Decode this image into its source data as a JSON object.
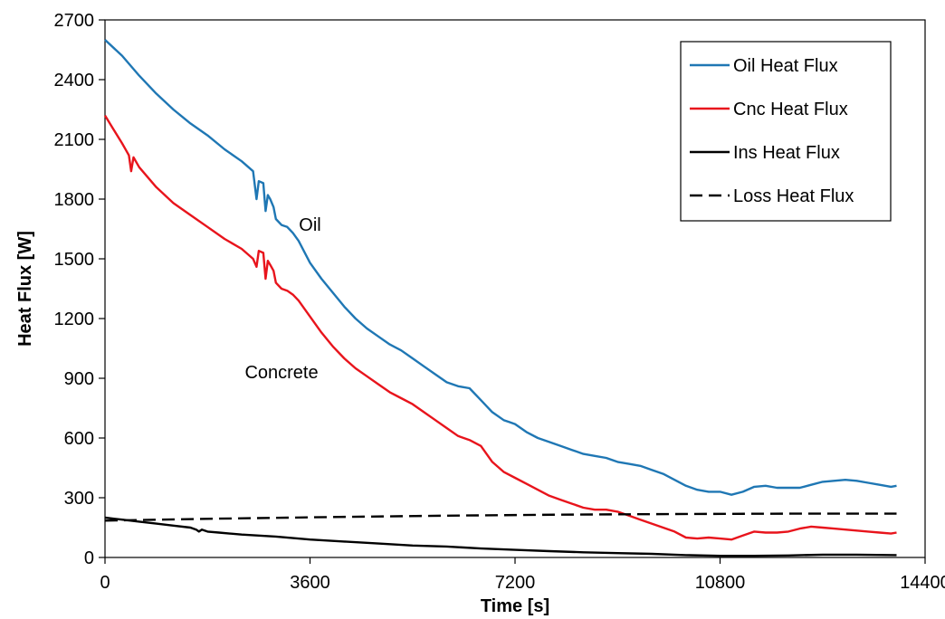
{
  "chart_data": {
    "type": "line",
    "title": "",
    "xlabel": "Time [s]",
    "ylabel": "Heat Flux [W]",
    "xlim": [
      0,
      14400
    ],
    "ylim": [
      0,
      2700
    ],
    "xticks": [
      0,
      3600,
      7200,
      10800,
      14400
    ],
    "yticks": [
      0,
      300,
      600,
      900,
      1200,
      1500,
      1800,
      2100,
      2400,
      2700
    ],
    "grid": false,
    "legend_position": "top-right",
    "annotations": [
      {
        "text": "Oil",
        "x": 3600,
        "y": 1640
      },
      {
        "text": "Concrete",
        "x": 3100,
        "y": 900
      }
    ],
    "series": [
      {
        "name": "Oil Heat Flux",
        "color": "#1f77b4",
        "dash": "solid",
        "x": [
          0,
          300,
          600,
          900,
          1200,
          1500,
          1800,
          2100,
          2400,
          2600,
          2660,
          2700,
          2780,
          2820,
          2860,
          2900,
          2960,
          3000,
          3100,
          3200,
          3300,
          3400,
          3600,
          3800,
          4000,
          4200,
          4400,
          4600,
          4800,
          5000,
          5200,
          5400,
          5600,
          5800,
          6000,
          6200,
          6400,
          6600,
          6800,
          7000,
          7100,
          7200,
          7300,
          7400,
          7600,
          7800,
          8000,
          8200,
          8400,
          8600,
          8800,
          9000,
          9200,
          9400,
          9600,
          9800,
          10000,
          10200,
          10400,
          10600,
          10800,
          11000,
          11200,
          11400,
          11600,
          11800,
          12000,
          12200,
          12400,
          12600,
          12800,
          13000,
          13200,
          13400,
          13600,
          13800,
          13900
        ],
        "values": [
          2600,
          2520,
          2420,
          2330,
          2250,
          2180,
          2120,
          2050,
          1990,
          1940,
          1800,
          1890,
          1880,
          1740,
          1820,
          1800,
          1760,
          1700,
          1670,
          1660,
          1630,
          1590,
          1480,
          1400,
          1330,
          1260,
          1200,
          1150,
          1110,
          1070,
          1040,
          1000,
          960,
          920,
          880,
          860,
          850,
          790,
          730,
          690,
          680,
          670,
          650,
          630,
          600,
          580,
          560,
          540,
          520,
          510,
          500,
          480,
          470,
          460,
          440,
          420,
          390,
          360,
          340,
          330,
          330,
          315,
          330,
          355,
          360,
          350,
          350,
          350,
          365,
          380,
          385,
          390,
          385,
          375,
          365,
          355,
          360
        ]
      },
      {
        "name": "Cnc Heat Flux",
        "color": "#e8141c",
        "dash": "solid",
        "x": [
          0,
          150,
          300,
          380,
          420,
          460,
          500,
          600,
          900,
          1200,
          1500,
          1800,
          2100,
          2400,
          2600,
          2660,
          2700,
          2780,
          2820,
          2860,
          2900,
          2960,
          3000,
          3100,
          3200,
          3300,
          3400,
          3600,
          3800,
          4000,
          4200,
          4400,
          4600,
          4800,
          5000,
          5200,
          5400,
          5600,
          5800,
          6000,
          6200,
          6400,
          6600,
          6800,
          7000,
          7200,
          7400,
          7600,
          7800,
          8000,
          8200,
          8400,
          8600,
          8800,
          9000,
          9200,
          9400,
          9600,
          9800,
          10000,
          10200,
          10400,
          10600,
          10800,
          11000,
          11200,
          11400,
          11600,
          11800,
          12000,
          12200,
          12400,
          12600,
          12800,
          13000,
          13200,
          13400,
          13600,
          13800,
          13900
        ],
        "values": [
          2220,
          2150,
          2080,
          2040,
          2020,
          1940,
          2010,
          1960,
          1860,
          1780,
          1720,
          1660,
          1600,
          1550,
          1500,
          1460,
          1540,
          1530,
          1400,
          1490,
          1470,
          1440,
          1380,
          1350,
          1340,
          1320,
          1290,
          1210,
          1130,
          1060,
          1000,
          950,
          910,
          870,
          830,
          800,
          770,
          730,
          690,
          650,
          610,
          590,
          560,
          480,
          430,
          400,
          370,
          340,
          310,
          290,
          270,
          250,
          240,
          240,
          230,
          210,
          190,
          170,
          150,
          130,
          100,
          95,
          100,
          95,
          90,
          110,
          130,
          125,
          125,
          130,
          145,
          155,
          150,
          145,
          140,
          135,
          130,
          125,
          120,
          125
        ]
      },
      {
        "name": "Ins Heat Flux",
        "color": "#000000",
        "dash": "solid",
        "x": [
          0,
          300,
          600,
          900,
          1200,
          1500,
          1600,
          1650,
          1700,
          1800,
          2000,
          2400,
          3000,
          3600,
          4200,
          4800,
          5400,
          6000,
          6600,
          7200,
          7800,
          8400,
          9000,
          9600,
          10200,
          10800,
          11400,
          12000,
          12600,
          13200,
          13900
        ],
        "values": [
          200,
          190,
          180,
          170,
          160,
          150,
          140,
          130,
          140,
          130,
          125,
          115,
          105,
          90,
          80,
          70,
          60,
          55,
          45,
          38,
          32,
          26,
          22,
          18,
          12,
          8,
          8,
          10,
          14,
          14,
          12
        ]
      },
      {
        "name": "Loss Heat Flux",
        "color": "#000000",
        "dash": "dashed",
        "x": [
          0,
          2000,
          4000,
          6000,
          8000,
          10000,
          12000,
          13900
        ],
        "values": [
          185,
          195,
          203,
          210,
          215,
          218,
          220,
          220
        ]
      }
    ]
  }
}
